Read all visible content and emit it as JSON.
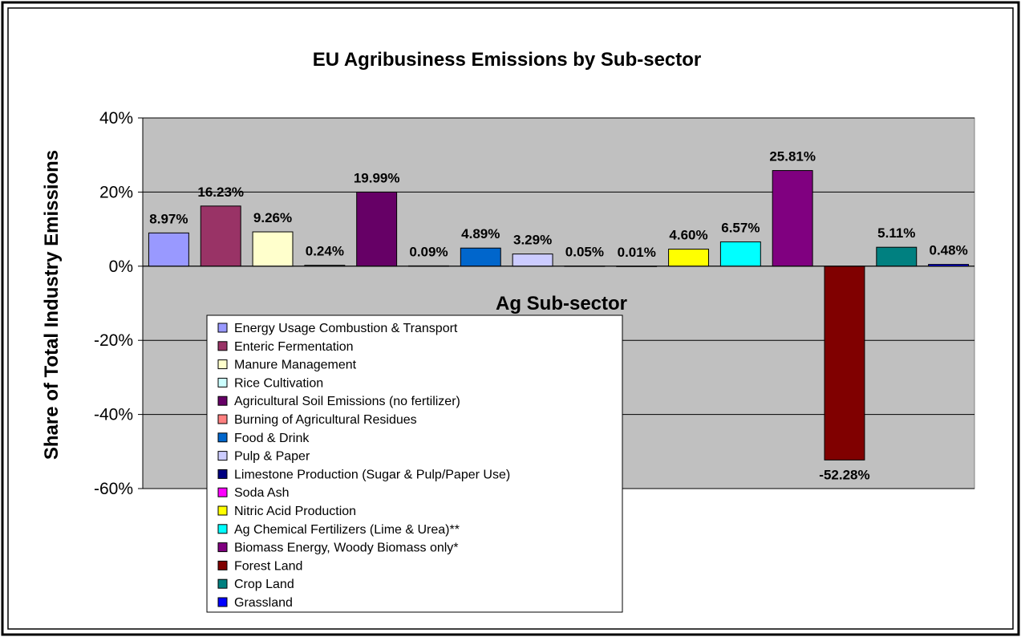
{
  "chart_data": {
    "type": "bar",
    "title": "EU Agribusiness Emissions by Sub-sector",
    "xlabel": "Ag Sub-sector",
    "ylabel": "Share of Total Industry Emissions",
    "ylim": [
      -60,
      40
    ],
    "yticks": [
      "40%",
      "20%",
      "0%",
      "-20%",
      "-40%",
      "-60%"
    ],
    "ytick_values": [
      40,
      20,
      0,
      -20,
      -40,
      -60
    ],
    "grid": true,
    "plot_background": "#c0c0c0",
    "legend_position": "lower-left",
    "categories": [
      "Energy Usage Combustion & Transport",
      "Enteric Fermentation",
      "Manure Management",
      "Rice Cultivation",
      "Agricultural Soil Emissions (no fertilizer)",
      "Burning of Agricultural Residues",
      "Food & Drink",
      "Pulp & Paper",
      "Limestone Production (Sugar & Pulp/Paper Use)",
      "Soda Ash",
      "Nitric Acid Production",
      "Ag Chemical Fertilizers (Lime & Urea)**",
      "Biomass Energy, Woody Biomass only*",
      "Forest Land",
      "Crop Land",
      "Grassland"
    ],
    "values": [
      8.97,
      16.23,
      9.26,
      0.24,
      19.99,
      0.09,
      4.89,
      3.29,
      0.05,
      0.01,
      4.6,
      6.57,
      25.81,
      -52.28,
      5.11,
      0.48
    ],
    "data_labels": [
      "8.97%",
      "16.23%",
      "9.26%",
      "0.24%",
      "19.99%",
      "0.09%",
      "4.89%",
      "3.29%",
      "0.05%",
      "0.01%",
      "4.60%",
      "6.57%",
      "25.81%",
      "-52.28%",
      "5.11%",
      "0.48%"
    ],
    "colors": [
      "#9999ff",
      "#993366",
      "#ffffcc",
      "#ccffff",
      "#660066",
      "#ff8080",
      "#0066cc",
      "#ccccff",
      "#000080",
      "#ff00ff",
      "#ffff00",
      "#00ffff",
      "#800080",
      "#800000",
      "#008080",
      "#0000ff"
    ]
  }
}
